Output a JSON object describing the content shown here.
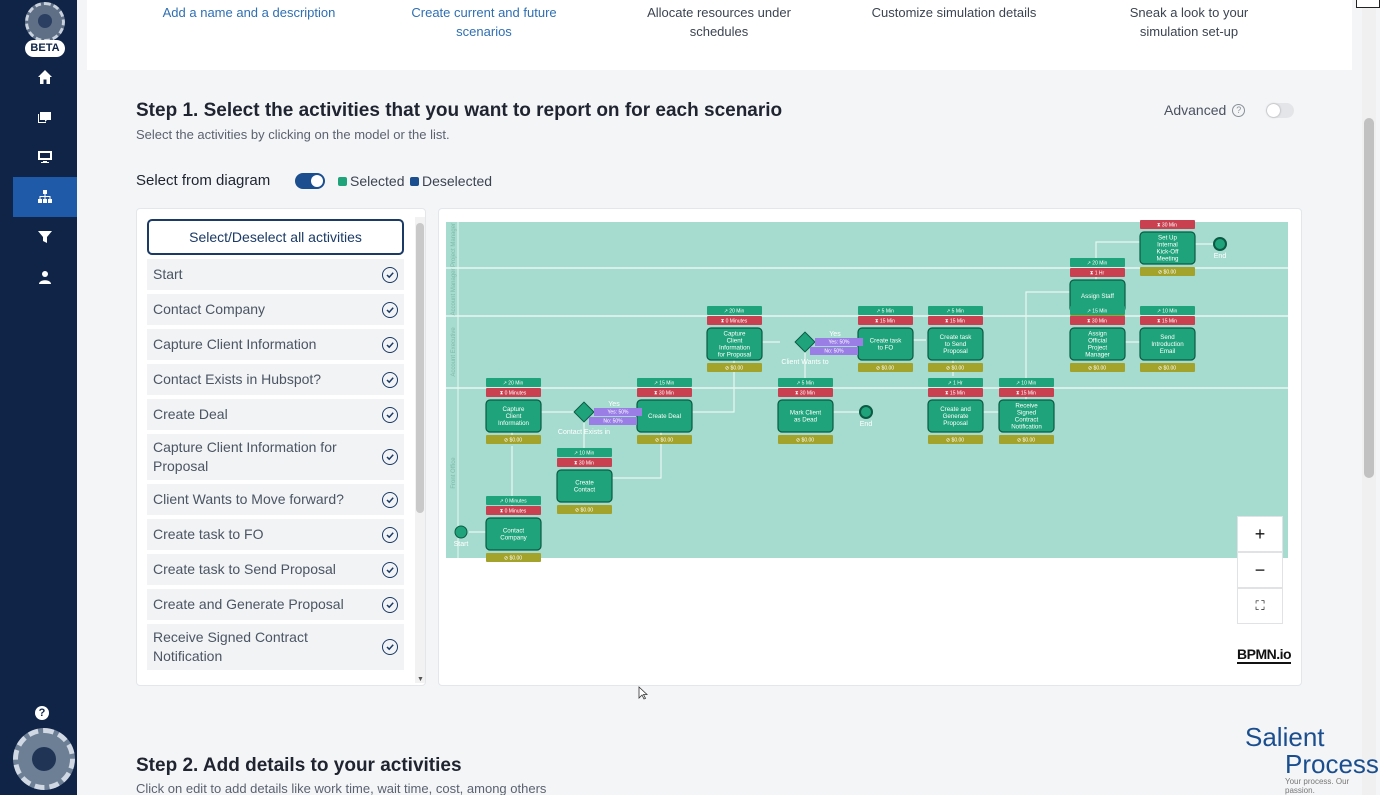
{
  "sidebar": {
    "beta_label": "BETA",
    "help_label": "?",
    "items": [
      {
        "name": "home-icon"
      },
      {
        "name": "scenarios-icon"
      },
      {
        "name": "monitor-icon"
      },
      {
        "name": "hierarchy-icon",
        "active": true
      },
      {
        "name": "filter-icon"
      },
      {
        "name": "user-settings-icon"
      }
    ]
  },
  "wizard": {
    "steps": [
      {
        "label": "Add a name and a description"
      },
      {
        "label": "Create current and future scenarios"
      },
      {
        "label": "Allocate resources under schedules"
      },
      {
        "label": "Customize simulation details"
      },
      {
        "label": "Sneak a look to your simulation set-up"
      }
    ]
  },
  "step1": {
    "title": "Step 1. Select the activities that you want to report on for each scenario",
    "subtitle": "Select the activities by clicking on the model or the list.",
    "advanced_label": "Advanced",
    "select_from_diagram_label": "Select from diagram",
    "legend_selected": "Selected",
    "legend_deselected": "Deselected",
    "selected_color": "#1fa37a",
    "deselected_color": "#1a4e8f",
    "select_all_label": "Select/Deselect all activities",
    "activities": [
      "Start",
      "Contact Company",
      "Capture Client Information",
      "Contact Exists in Hubspot?",
      "Create Deal",
      "Capture Client Information for Proposal",
      "Client Wants to Move forward?",
      "Create task to FO",
      "Create task to Send Proposal",
      "Create and Generate Proposal",
      "Receive Signed Contract Notification"
    ]
  },
  "diagram": {
    "lanes": [
      "Project Manager",
      "Account Manager",
      "Account Executive",
      "Front Office"
    ],
    "tasks": [
      {
        "label": "Contact Company",
        "top": "0 Minutes",
        "mid": "0 Minutes",
        "cost": "$0.00"
      },
      {
        "label": "Capture Client Information",
        "top": "20 Min",
        "mid": "0 Minutes",
        "cost": "$0.00"
      },
      {
        "label": "Create Contact",
        "top": "10 Min",
        "mid": "30 Min",
        "cost": "$0.00"
      },
      {
        "label": "Create Deal",
        "top": "15 Min",
        "mid": "30 Min",
        "cost": "$0.00"
      },
      {
        "label": "Capture Client Information for Proposal",
        "top": "20 Min",
        "mid": "0 Minutes",
        "cost": "$0.00"
      },
      {
        "label": "Mark Client as Dead",
        "top": "5 Min",
        "mid": "30 Min",
        "cost": "$0.00"
      },
      {
        "label": "Create task to FO",
        "top": "5 Min",
        "mid": "15 Min",
        "cost": "$0.00"
      },
      {
        "label": "Create task to Send Proposal",
        "top": "5 Min",
        "mid": "15 Min",
        "cost": "$0.00"
      },
      {
        "label": "Create and Generate Proposal",
        "top": "1 Hr",
        "mid": "15 Min",
        "cost": "$0.00"
      },
      {
        "label": "Receive Signed Contract Notification",
        "top": "10 Min",
        "mid": "15 Min",
        "cost": "$0.00"
      },
      {
        "label": "Assign Staff",
        "top": "20 Min",
        "mid": "1 Hr",
        "cost": "$0.00"
      },
      {
        "label": "Assign Official Project Manager",
        "top": "15 Min",
        "mid": "30 Min",
        "cost": "$0.00"
      },
      {
        "label": "Set Up Internal Kick-Off Meeting",
        "top": "",
        "mid": "30 Min",
        "cost": "$0.00"
      },
      {
        "label": "Send Introduction Email",
        "top": "10 Min",
        "mid": "15 Min",
        "cost": "$0.00"
      }
    ],
    "gateways": [
      {
        "label": "Contact Exists in",
        "yes": "Yes: 50%",
        "no": "No: 50%",
        "yes_label": "Yes"
      },
      {
        "label": "Client Wants to",
        "yes": "Yes: 50%",
        "no": "No: 50%",
        "yes_label": "Yes"
      }
    ],
    "events": [
      "Start",
      "End",
      "End",
      "End"
    ],
    "zoom_in": "+",
    "zoom_out": "−",
    "fit": "⛶",
    "bpmn_logo": "BPMN.io",
    "lane_color": "#a6dccf",
    "task_color": "#1fa37a"
  },
  "step2": {
    "title": "Step 2. Add details to your activities",
    "subtitle": "Click on edit to add details like work time, wait time, cost, among others"
  },
  "brand": {
    "line1": "Salient",
    "line2": "Process",
    "tagline": "Your process. Our passion."
  }
}
